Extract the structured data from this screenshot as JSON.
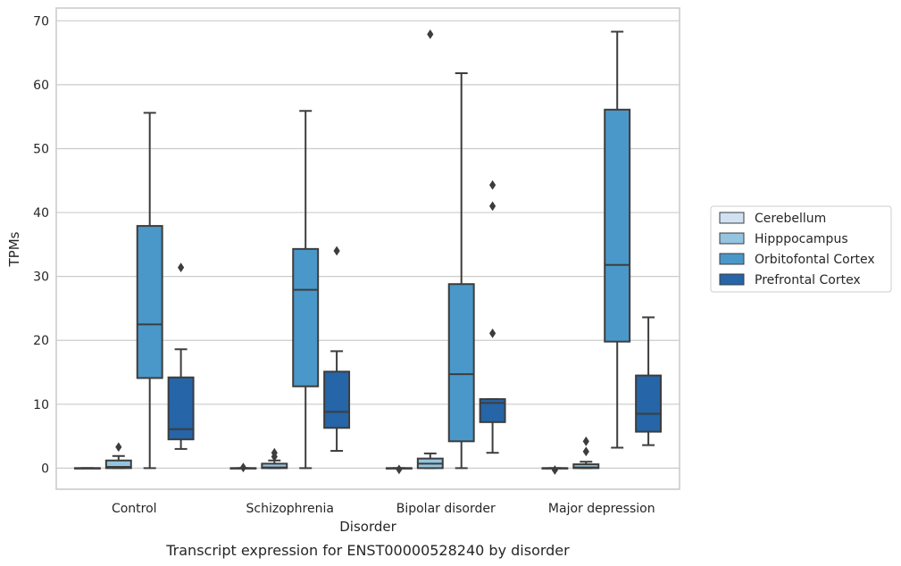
{
  "chart_data": {
    "type": "box",
    "caption": "Transcript expression for ENST00000528240 by disorder",
    "xlabel": "Disorder",
    "ylabel": "TPMs",
    "ylim": [
      -3.3,
      72
    ],
    "yticks": [
      "0",
      "10",
      "20",
      "30",
      "40",
      "50",
      "60",
      "70"
    ],
    "categories": [
      "Control",
      "Schizophrenia",
      "Bipolar disorder",
      "Major depression"
    ],
    "grid": "horizontal",
    "legend_position": "right",
    "series": [
      {
        "name": "Cerebellum",
        "color": "#d0e1f2",
        "boxes": [
          {
            "whislo": 0,
            "q1": 0,
            "med": 0,
            "q3": 0,
            "whishi": 0,
            "fliers": []
          },
          {
            "whislo": 0,
            "q1": 0,
            "med": 0,
            "q3": 0,
            "whishi": 0,
            "fliers": [
              0.1
            ]
          },
          {
            "whislo": 0,
            "q1": 0,
            "med": 0,
            "q3": 0,
            "whishi": 0,
            "fliers": [
              -0.2
            ]
          },
          {
            "whislo": 0,
            "q1": 0,
            "med": 0,
            "q3": 0,
            "whishi": 0,
            "fliers": [
              -0.3
            ]
          }
        ]
      },
      {
        "name": "Hipppocampus",
        "color": "#94c4df",
        "boxes": [
          {
            "whislo": 0,
            "q1": 0,
            "med": 0.2,
            "q3": 1.2,
            "whishi": 1.9,
            "fliers": [
              3.3
            ]
          },
          {
            "whislo": 0,
            "q1": 0,
            "med": 0.1,
            "q3": 0.7,
            "whishi": 1.2,
            "fliers": [
              1.8,
              2.4
            ]
          },
          {
            "whislo": 0,
            "q1": 0,
            "med": 0.7,
            "q3": 1.5,
            "whishi": 2.3,
            "fliers": [
              67.9
            ]
          },
          {
            "whislo": 0,
            "q1": 0,
            "med": 0.1,
            "q3": 0.6,
            "whishi": 1.0,
            "fliers": [
              2.6,
              4.2
            ]
          }
        ]
      },
      {
        "name": "Orbitofontal Cortex",
        "color": "#4a98c9",
        "boxes": [
          {
            "whislo": 0,
            "q1": 14.1,
            "med": 22.5,
            "q3": 37.9,
            "whishi": 55.6,
            "fliers": []
          },
          {
            "whislo": 0,
            "q1": 12.8,
            "med": 27.9,
            "q3": 34.3,
            "whishi": 55.9,
            "fliers": []
          },
          {
            "whislo": 0,
            "q1": 4.2,
            "med": 14.7,
            "q3": 28.8,
            "whishi": 61.8,
            "fliers": []
          },
          {
            "whislo": 3.2,
            "q1": 19.8,
            "med": 31.8,
            "q3": 56.1,
            "whishi": 68.3,
            "fliers": []
          }
        ]
      },
      {
        "name": "Prefrontal Cortex",
        "color": "#2565a8",
        "boxes": [
          {
            "whislo": 3.0,
            "q1": 4.5,
            "med": 6.1,
            "q3": 14.2,
            "whishi": 18.6,
            "fliers": [
              31.4
            ]
          },
          {
            "whislo": 2.7,
            "q1": 6.3,
            "med": 8.8,
            "q3": 15.1,
            "whishi": 18.3,
            "fliers": [
              34.0
            ]
          },
          {
            "whislo": 2.4,
            "q1": 7.2,
            "med": 10.2,
            "q3": 10.8,
            "whishi": 10.8,
            "fliers": [
              21.1,
              41.0,
              44.3
            ]
          },
          {
            "whislo": 3.6,
            "q1": 5.7,
            "med": 8.5,
            "q3": 14.5,
            "whishi": 23.6,
            "fliers": []
          }
        ]
      }
    ]
  }
}
